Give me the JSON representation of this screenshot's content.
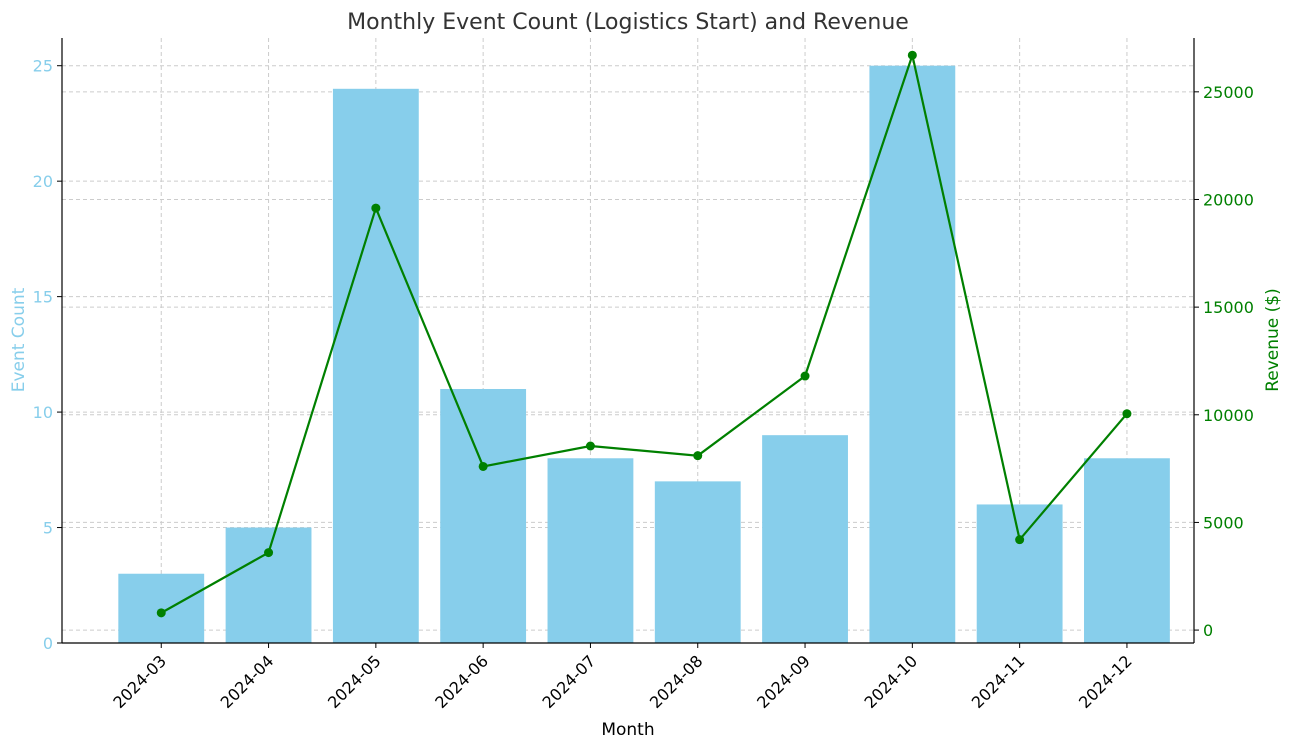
{
  "colors": {
    "bar": "#87ceeb",
    "line": "#008000",
    "left_axis": "#87ceeb",
    "right_axis": "#008000",
    "grid": "#cccccc",
    "title": "#333333",
    "axis": "#000000"
  },
  "chart_data": {
    "type": "bar",
    "title": "Monthly Event Count (Logistics Start) and Revenue",
    "xlabel": "Month",
    "ylabel": "Event Count",
    "y2label": "Revenue ($)",
    "categories": [
      "2024-03",
      "2024-04",
      "2024-05",
      "2024-06",
      "2024-07",
      "2024-08",
      "2024-09",
      "2024-10",
      "2024-11",
      "2024-12"
    ],
    "ylim": [
      0,
      26.2
    ],
    "y2lim": [
      -600,
      27500
    ],
    "y_ticks": [
      0,
      5,
      10,
      15,
      20,
      25
    ],
    "y2_ticks": [
      0,
      5000,
      10000,
      15000,
      20000,
      25000
    ],
    "grid": true,
    "legend": "none",
    "series": [
      {
        "type": "bar",
        "axis": "left",
        "values": [
          3,
          5,
          24,
          11,
          8,
          7,
          9,
          25,
          6,
          8
        ]
      },
      {
        "type": "line",
        "axis": "right",
        "marker": "circle",
        "values": [
          800,
          3600,
          19600,
          7600,
          8550,
          8100,
          11800,
          26700,
          4200,
          10050
        ]
      }
    ]
  }
}
